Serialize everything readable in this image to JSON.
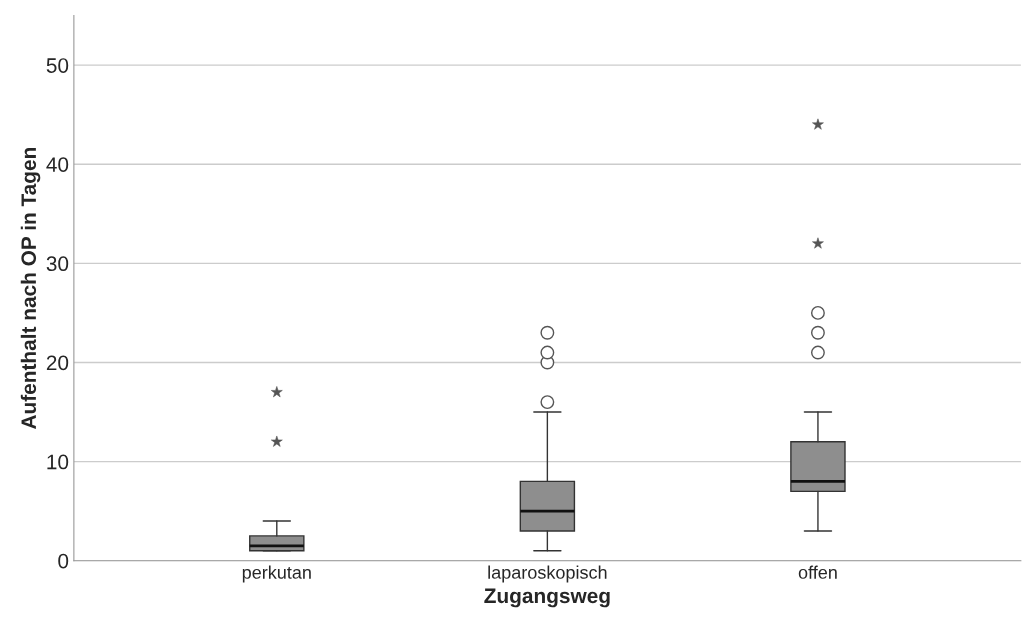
{
  "chart_data": {
    "type": "box",
    "xlabel": "Zugangsweg",
    "ylabel": "Aufenthalt nach OP in Tagen",
    "categories": [
      "perkutan",
      "laparoskopisch",
      "offen"
    ],
    "boxes": [
      {
        "low": 1,
        "q1": 1,
        "median": 1.5,
        "q3": 2.5,
        "high": 4
      },
      {
        "low": 1,
        "q1": 3,
        "median": 5,
        "q3": 8,
        "high": 15,
        "outliers": [
          16,
          20,
          21,
          23
        ]
      },
      {
        "low": 3,
        "q1": 7,
        "median": 8,
        "q3": 12,
        "high": 15,
        "outliers": [
          21,
          23,
          25
        ]
      }
    ],
    "color": "#8e8e8e",
    "series": [
      {
        "type": "scatter",
        "marker": "star",
        "color": "#555555",
        "x": [
          "perkutan",
          "perkutan",
          "offen",
          "offen"
        ],
        "values": [
          12,
          17,
          32,
          44
        ]
      }
    ],
    "ylim": [
      0,
      55
    ],
    "yticks": [
      0,
      10,
      20,
      30,
      40,
      50
    ],
    "grid": "y",
    "legend": false
  }
}
